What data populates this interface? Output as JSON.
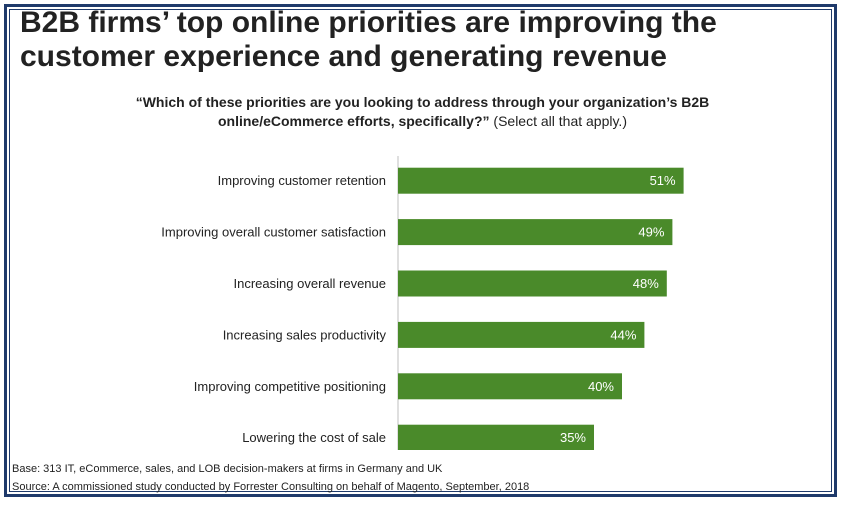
{
  "title_line1": "B2B firms’ top online priorities are improving the",
  "title_line2": "customer experience and generating revenue",
  "question": {
    "quoted": "“Which of these priorities are you looking to address through your organization’s B2B online/eCommerce efforts, specifically?”",
    "note": "(Select all that apply.)"
  },
  "chart_data": {
    "type": "bar",
    "orientation": "horizontal",
    "categories": [
      "Improving customer retention",
      "Improving overall customer satisfaction",
      "Increasing overall revenue",
      "Increasing sales productivity",
      "Improving competitive positioning",
      "Lowering the cost of sale"
    ],
    "values": [
      51,
      49,
      48,
      44,
      40,
      35
    ],
    "value_labels": [
      "51%",
      "49%",
      "48%",
      "44%",
      "40%",
      "35%"
    ],
    "xlim": [
      0,
      100
    ],
    "grid": false,
    "legend": "none",
    "bar_color": "#4a8a2a"
  },
  "footnotes": {
    "base": "Base: 313 IT, eCommerce, sales, and LOB decision-makers at firms in Germany and UK",
    "source": "Source: A commissioned study conducted by Forrester Consulting on behalf of Magento, September,  2018"
  }
}
